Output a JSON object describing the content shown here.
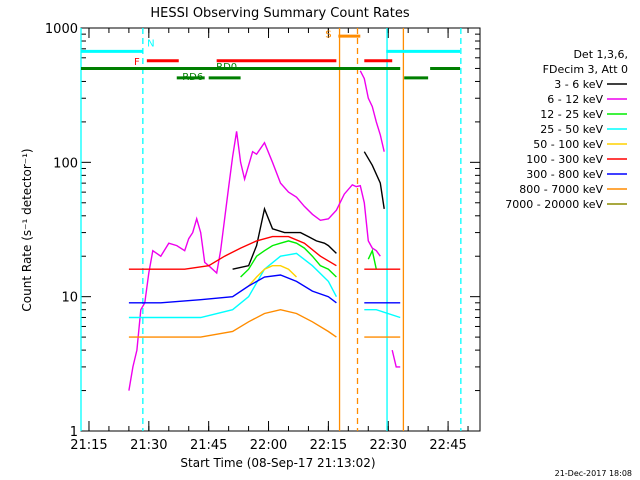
{
  "chart_data": {
    "type": "line",
    "title": "HESSI Observing Summary Count Rates",
    "xlabel": "Start Time (08-Sep-17 21:13:02)",
    "ylabel": "Count Rate (s⁻¹ detector⁻¹)",
    "x_unit": "minutes after 21:13:02 UT, 08-Sep-17",
    "x_range": [
      0,
      100
    ],
    "ylim": [
      1,
      1000
    ],
    "y_scale": "log",
    "x_ticks": [
      {
        "label": "21:15",
        "t": 2
      },
      {
        "label": "21:30",
        "t": 17
      },
      {
        "label": "21:45",
        "t": 32
      },
      {
        "label": "22:00",
        "t": 47
      },
      {
        "label": "22:15",
        "t": 62
      },
      {
        "label": "22:30",
        "t": 77
      },
      {
        "label": "22:45",
        "t": 92
      }
    ],
    "y_ticks": [
      {
        "label": "1",
        "v": 1
      },
      {
        "label": "10",
        "v": 10
      },
      {
        "label": "100",
        "v": 100
      },
      {
        "label": "1000",
        "v": 1000
      }
    ],
    "legend_position": "right",
    "legend_header": [
      "Det 1,3,6,",
      "FDecim 3, Att 0"
    ],
    "series": [
      {
        "name": "3 - 6 keV",
        "color": "#000000",
        "segments": [
          [
            [
              38,
              16
            ],
            [
              42,
              17
            ],
            [
              44,
              24
            ],
            [
              46,
              45
            ],
            [
              48,
              32
            ],
            [
              51,
              30
            ],
            [
              55,
              30
            ],
            [
              57,
              28
            ],
            [
              59,
              26
            ],
            [
              61,
              25
            ],
            [
              62,
              24
            ],
            [
              64,
              21
            ]
          ],
          [
            [
              71,
              120
            ],
            [
              73,
              95
            ],
            [
              75,
              70
            ],
            [
              76,
              45
            ]
          ]
        ]
      },
      {
        "name": "6 - 12 keV",
        "color": "#ee00ee",
        "segments": [
          [
            [
              12,
              2
            ],
            [
              13,
              3
            ],
            [
              14,
              4
            ],
            [
              15,
              8
            ],
            [
              16,
              9
            ],
            [
              17,
              15
            ],
            [
              18,
              22
            ],
            [
              20,
              20
            ],
            [
              22,
              25
            ],
            [
              24,
              24
            ],
            [
              26,
              22
            ],
            [
              27,
              27
            ],
            [
              28,
              30
            ],
            [
              29,
              38
            ],
            [
              30,
              30
            ],
            [
              31,
              18
            ],
            [
              32,
              17
            ],
            [
              34,
              15
            ],
            [
              35,
              22
            ],
            [
              37,
              65
            ],
            [
              38,
              110
            ],
            [
              39,
              170
            ],
            [
              40,
              100
            ],
            [
              41,
              75
            ],
            [
              43,
              120
            ],
            [
              44,
              115
            ],
            [
              46,
              140
            ],
            [
              48,
              100
            ],
            [
              50,
              70
            ],
            [
              52,
              60
            ],
            [
              54,
              55
            ],
            [
              56,
              47
            ],
            [
              58,
              41
            ],
            [
              60,
              37
            ],
            [
              62,
              38
            ],
            [
              64,
              44
            ],
            [
              66,
              58
            ],
            [
              68,
              68
            ],
            [
              69,
              66
            ],
            [
              70,
              67
            ],
            [
              71,
              50
            ],
            [
              72,
              26
            ],
            [
              73,
              23
            ],
            [
              74,
              22
            ],
            [
              75,
              20
            ]
          ],
          [
            [
              70,
              480
            ],
            [
              71,
              420
            ],
            [
              72,
              300
            ],
            [
              73,
              260
            ],
            [
              74,
              200
            ],
            [
              75,
              160
            ],
            [
              76,
              120
            ]
          ],
          [
            [
              78,
              4
            ],
            [
              79,
              3
            ],
            [
              80,
              3
            ]
          ]
        ]
      },
      {
        "name": "12 - 25 keV",
        "color": "#00ee00",
        "segments": [
          [
            [
              40,
              14
            ],
            [
              42,
              16
            ],
            [
              44,
              20
            ],
            [
              46,
              22
            ],
            [
              48,
              24
            ],
            [
              50,
              25
            ],
            [
              52,
              26
            ],
            [
              54,
              25
            ],
            [
              56,
              23
            ],
            [
              58,
              20
            ],
            [
              60,
              17
            ],
            [
              62,
              16
            ],
            [
              64,
              14
            ]
          ],
          [
            [
              72,
              19
            ],
            [
              73,
              22
            ],
            [
              74,
              16
            ]
          ]
        ]
      },
      {
        "name": "25 - 50 keV",
        "color": "#00ffff",
        "segments": [
          [
            [
              12,
              7
            ],
            [
              20,
              7
            ],
            [
              30,
              7
            ],
            [
              38,
              8
            ],
            [
              42,
              10
            ],
            [
              46,
              16
            ],
            [
              50,
              20
            ],
            [
              54,
              21
            ],
            [
              58,
              17
            ],
            [
              62,
              13
            ],
            [
              64,
              10
            ]
          ],
          [
            [
              71,
              8
            ],
            [
              74,
              8
            ],
            [
              80,
              7
            ]
          ]
        ]
      },
      {
        "name": "50 - 100 keV",
        "color": "#ffd200",
        "segments": [
          [
            [
              42,
              12
            ],
            [
              44,
              14
            ],
            [
              46,
              16
            ],
            [
              48,
              17
            ],
            [
              50,
              17
            ],
            [
              52,
              16
            ],
            [
              54,
              14
            ]
          ]
        ]
      },
      {
        "name": "100 - 300 keV",
        "color": "#ff0000",
        "segments": [
          [
            [
              12,
              16
            ],
            [
              20,
              16
            ],
            [
              26,
              16
            ],
            [
              32,
              17
            ],
            [
              36,
              20
            ],
            [
              40,
              23
            ],
            [
              44,
              26
            ],
            [
              48,
              28
            ],
            [
              52,
              28
            ],
            [
              56,
              25
            ],
            [
              60,
              20
            ],
            [
              64,
              17
            ]
          ],
          [
            [
              71,
              16
            ],
            [
              80,
              16
            ]
          ]
        ]
      },
      {
        "name": "300 - 800 keV",
        "color": "#0000ff",
        "segments": [
          [
            [
              12,
              9
            ],
            [
              20,
              9
            ],
            [
              30,
              9.5
            ],
            [
              38,
              10
            ],
            [
              42,
              12
            ],
            [
              46,
              14
            ],
            [
              50,
              14.5
            ],
            [
              54,
              13
            ],
            [
              58,
              11
            ],
            [
              62,
              10
            ],
            [
              64,
              9
            ]
          ],
          [
            [
              71,
              9
            ],
            [
              80,
              9
            ]
          ]
        ]
      },
      {
        "name": "800 - 7000 keV",
        "color": "#ff8c00",
        "segments": [
          [
            [
              12,
              5
            ],
            [
              20,
              5
            ],
            [
              30,
              5
            ],
            [
              38,
              5.5
            ],
            [
              42,
              6.5
            ],
            [
              46,
              7.5
            ],
            [
              50,
              8
            ],
            [
              54,
              7.5
            ],
            [
              58,
              6.5
            ],
            [
              62,
              5.5
            ],
            [
              64,
              5
            ]
          ],
          [
            [
              71,
              5
            ],
            [
              80,
              5
            ]
          ]
        ]
      },
      {
        "name": "7000 - 20000 keV",
        "color": "#8b8b00",
        "segments": []
      }
    ],
    "vlines": [
      {
        "t": 0,
        "color": "#00ffff",
        "dash": false
      },
      {
        "t": 15.5,
        "color": "#00ffff",
        "dash": true
      },
      {
        "t": 64.8,
        "color": "#ff8c00",
        "dash": false
      },
      {
        "t": 69.3,
        "color": "#ff8c00",
        "dash": true
      },
      {
        "t": 76.7,
        "color": "#00ffff",
        "dash": false
      },
      {
        "t": 80.8,
        "color": "#ff8c00",
        "dash": false
      },
      {
        "t": 95.2,
        "color": "#00ffff",
        "dash": true
      }
    ],
    "state_bars": [
      {
        "label": "N",
        "color": "#00ffff",
        "label_t": 17.5,
        "v": 670,
        "label_v": 780,
        "intervals": [
          [
            0,
            15.5
          ],
          [
            76.5,
            95
          ]
        ]
      },
      {
        "label": "F",
        "color": "#ff0000",
        "label_t": 14,
        "v": 570,
        "label_v": 570,
        "intervals": [
          [
            16.5,
            24.5
          ],
          [
            34,
            64
          ],
          [
            71,
            78
          ]
        ]
      },
      {
        "label": "S",
        "color": "#ff8c00",
        "label_t": 62,
        "v": 870,
        "label_v": 910,
        "intervals": [
          [
            64.5,
            70
          ]
        ]
      },
      {
        "label": "RD0",
        "color": "#007f00",
        "label_t": 36.5,
        "v": 500,
        "label_v": 520,
        "intervals": [
          [
            0,
            80
          ],
          [
            87.5,
            95
          ]
        ]
      },
      {
        "label": "RD6",
        "color": "#007f00",
        "label_t": 28,
        "v": 425,
        "label_v": 440,
        "intervals": [
          [
            24,
            31
          ],
          [
            32,
            40
          ],
          [
            81,
            87
          ]
        ]
      }
    ]
  },
  "footer": {
    "date_stamp": "21-Dec-2017 18:08"
  }
}
